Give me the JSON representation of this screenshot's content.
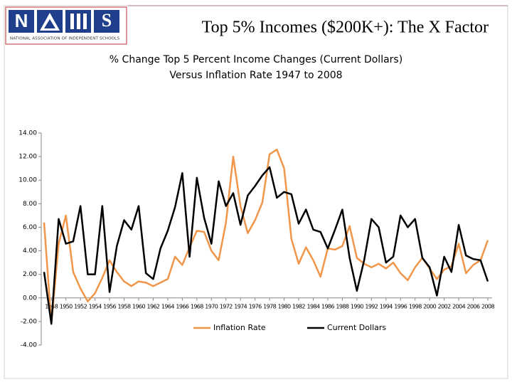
{
  "slide_title": "Top 5% Incomes ($200K+): The X Factor",
  "logo": {
    "letters": [
      "N",
      "S"
    ],
    "caption": "NATIONAL ASSOCIATION OF INDEPENDENT SCHOOLS"
  },
  "chart_data": {
    "type": "line",
    "title": [
      "% Change Top 5 Percent Income Changes (Current Dollars)",
      "Versus Inflation Rate  1947 to 2008"
    ],
    "x": [
      1947,
      1948,
      1949,
      1950,
      1951,
      1952,
      1953,
      1954,
      1955,
      1956,
      1957,
      1958,
      1959,
      1960,
      1961,
      1962,
      1963,
      1964,
      1965,
      1966,
      1967,
      1968,
      1969,
      1970,
      1971,
      1972,
      1973,
      1974,
      1975,
      1976,
      1977,
      1978,
      1979,
      1980,
      1981,
      1982,
      1983,
      1984,
      1985,
      1986,
      1987,
      1988,
      1989,
      1990,
      1991,
      1992,
      1993,
      1994,
      1995,
      1996,
      1997,
      1998,
      1999,
      2000,
      2001,
      2002,
      2003,
      2004,
      2005,
      2006,
      2007,
      2008
    ],
    "xlim": [
      1947,
      2008
    ],
    "xticks": [
      1948,
      1950,
      1952,
      1954,
      1956,
      1958,
      1960,
      1962,
      1964,
      1966,
      1968,
      1970,
      1972,
      1974,
      1976,
      1978,
      1980,
      1982,
      1984,
      1986,
      1988,
      1990,
      1992,
      1994,
      1996,
      1998,
      2000,
      2002,
      2004,
      2006,
      2008
    ],
    "ylim": [
      -4,
      14
    ],
    "yticks": [
      {
        "value": -4,
        "label": "-4.00"
      },
      {
        "value": -2,
        "label": "-2.00"
      },
      {
        "value": 0,
        "label": "0.00"
      },
      {
        "value": 2,
        "label": "2.00"
      },
      {
        "value": 4,
        "label": "4.00"
      },
      {
        "value": 6,
        "label": "6.00"
      },
      {
        "value": 8,
        "label": "8.00"
      },
      {
        "value": 10,
        "label": "10.00"
      },
      {
        "value": 12,
        "label": "12.00"
      },
      {
        "value": 14,
        "label": "14.00"
      }
    ],
    "series": [
      {
        "name": "Inflation Rate",
        "color": "#f0964a",
        "values": [
          6.4,
          -2.2,
          4.6,
          7.0,
          2.2,
          0.8,
          -0.3,
          0.4,
          1.7,
          3.2,
          2.2,
          1.4,
          1.0,
          1.4,
          1.3,
          1.0,
          1.3,
          1.6,
          3.5,
          2.8,
          4.3,
          5.7,
          5.6,
          4.0,
          3.2,
          6.4,
          12.0,
          7.8,
          5.5,
          6.6,
          8.1,
          12.2,
          12.6,
          11.0,
          5.0,
          2.9,
          4.3,
          3.2,
          1.8,
          4.2,
          4.1,
          4.4,
          6.1,
          3.4,
          2.9,
          2.6,
          2.9,
          2.5,
          3.0,
          2.1,
          1.5,
          2.6,
          3.4,
          2.5,
          1.6,
          2.4,
          2.7,
          4.6,
          2.1,
          2.8,
          3.2,
          4.9
        ]
      },
      {
        "name": "Current Dollars",
        "color": "#000000",
        "values": [
          2.2,
          -2.2,
          6.7,
          4.6,
          4.8,
          7.8,
          2.0,
          2.0,
          7.8,
          0.5,
          4.4,
          6.6,
          5.8,
          7.8,
          2.1,
          1.6,
          4.2,
          5.7,
          7.7,
          10.6,
          3.5,
          10.2,
          6.8,
          4.6,
          9.9,
          7.8,
          8.9,
          6.2,
          8.7,
          9.5,
          10.4,
          11.1,
          8.5,
          9.0,
          8.8,
          6.3,
          7.5,
          5.8,
          5.6,
          4.2,
          5.8,
          7.5,
          3.4,
          0.6,
          3.2,
          6.7,
          6.0,
          3.0,
          3.5,
          7.0,
          6.0,
          6.7,
          3.4,
          2.6,
          0.2,
          3.5,
          2.2,
          6.2,
          3.6,
          3.3,
          3.2,
          1.4
        ]
      }
    ]
  }
}
